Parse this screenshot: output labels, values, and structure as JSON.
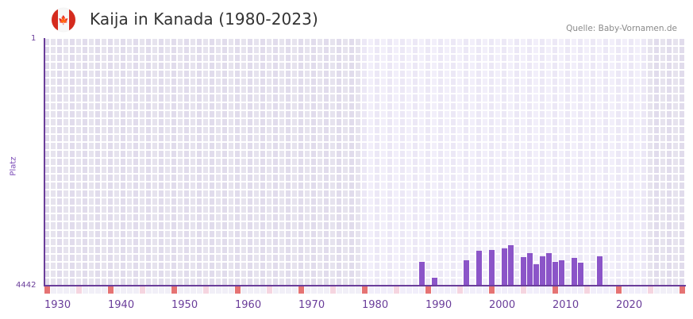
{
  "header": {
    "title": "Kaija in Kanada (1980-2023)",
    "source": "Quelle: Baby-Vornamen.de",
    "flag_icon": "canada-flag-icon"
  },
  "colors": {
    "bar": "#8b55c8",
    "axis": "#6a3d9a",
    "bg_outside": "#e3dfed",
    "bg_inside": "#efebf8",
    "decade_marker": "#e57373",
    "half_decade_marker": "#f5d5e0"
  },
  "chart_data": {
    "type": "bar",
    "title": "Kaija in Kanada (1980-2023)",
    "xlabel": "",
    "ylabel": "Platz",
    "y_inverted": true,
    "ylim": [
      4442,
      1
    ],
    "xlim": [
      1930,
      2030
    ],
    "highlight_range": [
      1980,
      2023
    ],
    "x_ticks": [
      1930,
      1940,
      1950,
      1960,
      1970,
      1980,
      1990,
      2000,
      2010,
      2020
    ],
    "y_ticks": [
      1,
      4442
    ],
    "grid": true,
    "legend": null,
    "categories": [
      1989,
      1991,
      1996,
      1998,
      2000,
      2002,
      2003,
      2005,
      2006,
      2007,
      2008,
      2009,
      2010,
      2011,
      2013,
      2014,
      2017
    ],
    "values": [
      4020,
      4300,
      3990,
      3820,
      3800,
      3770,
      3710,
      3930,
      3860,
      4060,
      3910,
      3860,
      4020,
      3990,
      3950,
      4030,
      3920
    ]
  },
  "axis": {
    "y_top_label": "1",
    "y_bottom_label": "4442",
    "y_title": "Platz",
    "x_labels": [
      "1930",
      "1940",
      "1950",
      "1960",
      "1970",
      "1980",
      "1990",
      "2000",
      "2010",
      "2020"
    ]
  }
}
